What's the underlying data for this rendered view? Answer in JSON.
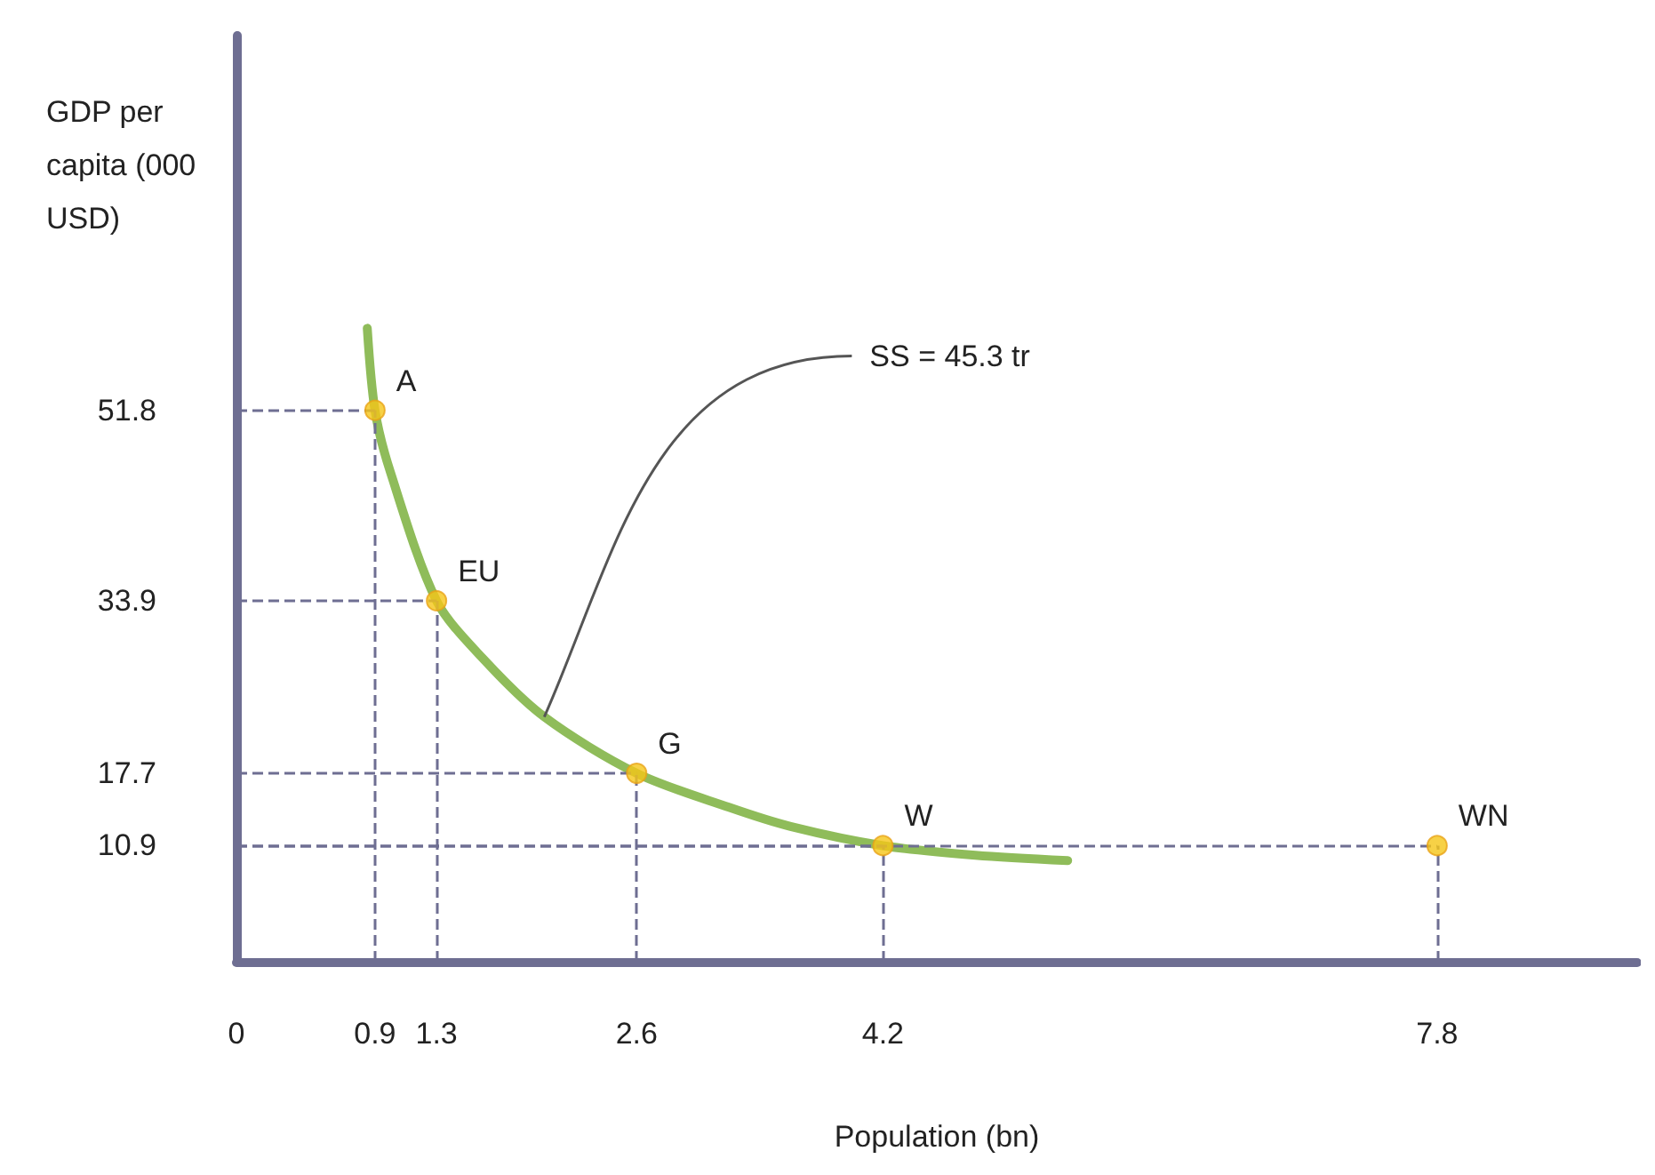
{
  "chart_data": {
    "type": "line",
    "xlabel": "Population (bn)",
    "ylabel": "GDP per capita (000 USD)",
    "xlim": [
      0,
      9.1
    ],
    "ylim": [
      0,
      87
    ],
    "xticks": [
      0,
      0.9,
      1.3,
      2.6,
      4.2,
      7.8
    ],
    "yticks": [
      10.9,
      17.7,
      33.9,
      51.8
    ],
    "series": [
      {
        "color": "#8fbc5a",
        "marker": "none",
        "x": [
          0.85,
          0.9,
          1.0,
          1.3,
          1.6,
          2.0,
          2.6,
          3.2,
          3.6,
          4.2,
          4.8,
          5.4
        ],
        "values": [
          59.5,
          51.8,
          46,
          33.9,
          28.5,
          23,
          17.7,
          14.5,
          12.7,
          10.9,
          10,
          9.5
        ]
      },
      {
        "type": "scatter",
        "color": "#f5c518",
        "marker": "circle",
        "line_style": "dashed",
        "x": [
          0.9,
          1.3,
          2.6,
          4.2,
          7.8
        ],
        "values": [
          51.8,
          33.9,
          17.7,
          10.9,
          10.9
        ]
      }
    ],
    "annotations": [
      {
        "text": "A",
        "x": 0.9,
        "y": 51.8
      },
      {
        "text": "EU",
        "x": 1.3,
        "y": 33.9
      },
      {
        "text": "G",
        "x": 2.6,
        "y": 17.7
      },
      {
        "text": "W",
        "x": 4.2,
        "y": 10.9
      },
      {
        "text": "WN",
        "x": 7.8,
        "y": 10.9
      },
      {
        "text": "SS = 45.3 tr",
        "x": 2.0,
        "y": 23
      }
    ]
  }
}
